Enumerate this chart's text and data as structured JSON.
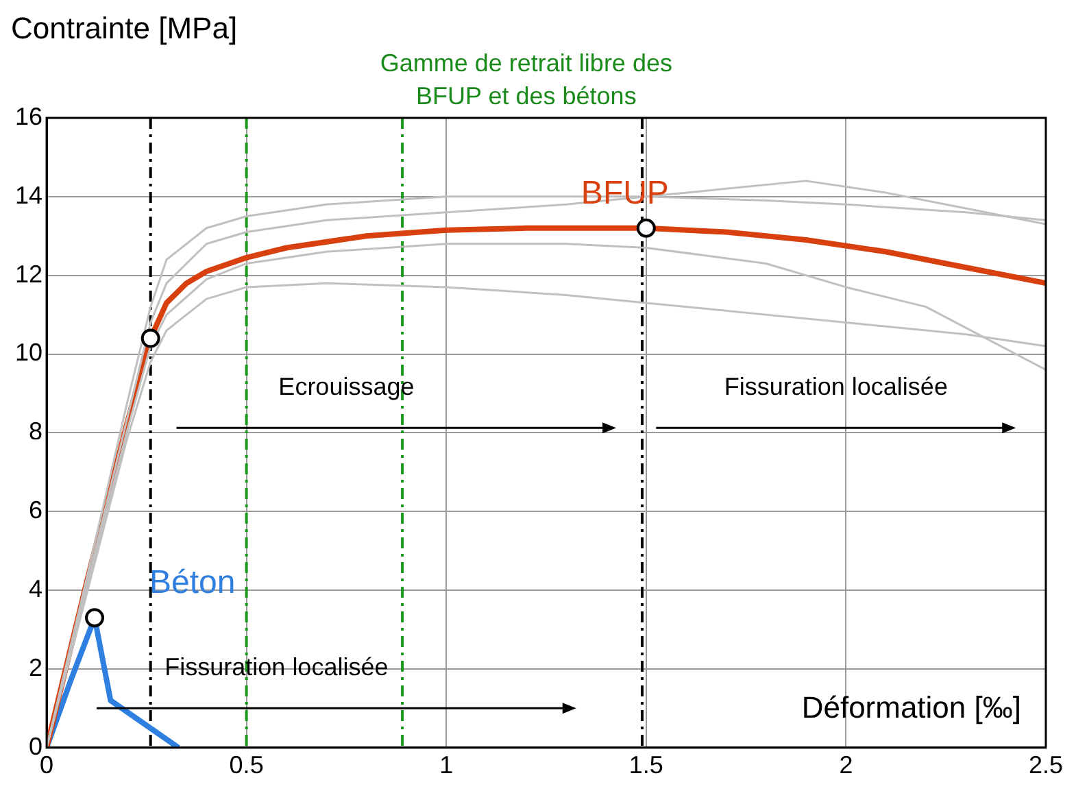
{
  "chart_data": {
    "type": "line",
    "xlabel": "Déformation [‰]",
    "ylabel": "Contrainte [MPa]",
    "xlim": [
      0,
      2.5
    ],
    "xticks": [
      0,
      0.5,
      1,
      1.5,
      2,
      2.5
    ],
    "ylim": [
      0,
      16
    ],
    "yticks": [
      0,
      2,
      4,
      6,
      8,
      10,
      12,
      14,
      16
    ],
    "grid": true,
    "line_style": "solid",
    "marker": "none",
    "series": [
      {
        "color": "#c0c0c0",
        "x": [
          0,
          0.1,
          0.2,
          0.26,
          0.3,
          0.4,
          0.5,
          0.7,
          1.0,
          1.3,
          1.5,
          1.8,
          2.0,
          2.3,
          2.5
        ],
        "values": [
          0,
          4.3,
          8.7,
          11.2,
          12.4,
          13.2,
          13.5,
          13.8,
          14.0,
          14.0,
          14.0,
          13.9,
          13.8,
          13.6,
          13.4
        ]
      },
      {
        "color": "#c0c0c0",
        "x": [
          0,
          0.1,
          0.2,
          0.26,
          0.3,
          0.4,
          0.5,
          0.7,
          1.0,
          1.3,
          1.5,
          1.7,
          1.9,
          2.1,
          2.3,
          2.5
        ],
        "values": [
          0,
          4.1,
          8.3,
          10.8,
          11.8,
          12.8,
          13.1,
          13.4,
          13.6,
          13.8,
          14.0,
          14.2,
          14.4,
          14.1,
          13.7,
          13.3
        ]
      },
      {
        "color": "#c0c0c0",
        "x": [
          0,
          0.1,
          0.2,
          0.26,
          0.3,
          0.4,
          0.5,
          0.7,
          1.0,
          1.3,
          1.5,
          1.8,
          2.0,
          2.2,
          2.5
        ],
        "values": [
          0,
          4.0,
          8.0,
          10.2,
          11.0,
          11.9,
          12.3,
          12.6,
          12.8,
          12.8,
          12.7,
          12.3,
          11.7,
          11.2,
          9.6
        ]
      },
      {
        "color": "#c0c0c0",
        "x": [
          0,
          0.1,
          0.2,
          0.26,
          0.3,
          0.4,
          0.5,
          0.7,
          1.0,
          1.3,
          1.5,
          1.8,
          2.0,
          2.3,
          2.5
        ],
        "values": [
          0,
          3.9,
          7.8,
          9.8,
          10.6,
          11.4,
          11.7,
          11.8,
          11.7,
          11.5,
          11.3,
          11.0,
          10.8,
          10.5,
          10.2
        ]
      },
      {
        "color": "#d9400f",
        "x": [
          0,
          0.05,
          0.1,
          0.15,
          0.2,
          0.26,
          0.3,
          0.35,
          0.4,
          0.5,
          0.6,
          0.8,
          1.0,
          1.2,
          1.5,
          1.7,
          1.9,
          2.1,
          2.3,
          2.5
        ],
        "values": [
          0,
          2.1,
          4.2,
          6.2,
          8.2,
          10.4,
          11.3,
          11.8,
          12.1,
          12.45,
          12.7,
          13.0,
          13.15,
          13.2,
          13.2,
          13.1,
          12.9,
          12.6,
          12.2,
          11.8
        ],
        "name": "BFUP"
      },
      {
        "color": "#2f7fe0",
        "x": [
          0,
          0.06,
          0.12,
          0.16,
          0.33
        ],
        "values": [
          0,
          1.7,
          3.3,
          1.2,
          0
        ],
        "name": "Béton"
      },
      {
        "type": "scatter",
        "marker": "circle",
        "color": "#000000",
        "x": [
          0.26,
          1.5,
          0.12
        ],
        "values": [
          10.4,
          13.2,
          3.3
        ]
      }
    ],
    "ref_lines": [
      {
        "axis": "x",
        "value": 0.26,
        "color": "#000000",
        "line_style": "dashed"
      },
      {
        "axis": "x",
        "value": 0.5,
        "color": "#1a9a1a",
        "line_style": "dashed"
      },
      {
        "axis": "x",
        "value": 0.89,
        "color": "#1a9a1a",
        "line_style": "dashed"
      },
      {
        "axis": "x",
        "value": 1.49,
        "color": "#000000",
        "line_style": "dashed"
      }
    ],
    "annotations": [
      "Gamme de retrait libre des BFUP et des bétons",
      "Ecrouissage",
      "Fissuration localisée",
      "Fissuration localisée"
    ]
  }
}
